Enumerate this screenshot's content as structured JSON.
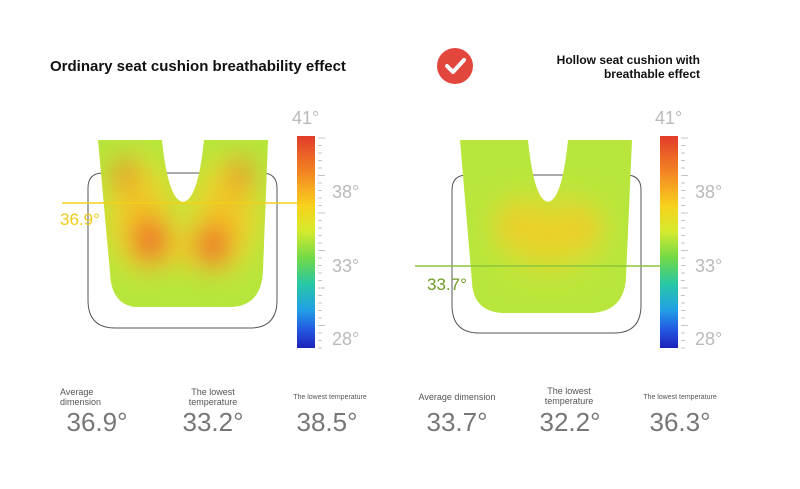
{
  "left": {
    "title": "Ordinary seat cushion breathability effect",
    "marker": "36.9°",
    "scale": [
      "41°",
      "38°",
      "33°",
      "28°"
    ],
    "stats": [
      {
        "label": "Average dimension",
        "value": "36.9°"
      },
      {
        "label": "The lowest temperature",
        "value": "33.2°"
      },
      {
        "label": "The lowest temperature",
        "value": "38.5°"
      }
    ]
  },
  "right": {
    "title_line1": "Hollow seat cushion with",
    "title_line2": "breathable effect",
    "check_icon": "check-circle-icon",
    "marker": "33.7°",
    "scale": [
      "41°",
      "38°",
      "33°",
      "28°"
    ],
    "stats": [
      {
        "label": "Average dimension",
        "value": "33.7°"
      },
      {
        "label": "The lowest temperature",
        "value": "32.2°"
      },
      {
        "label": "The lowest temperature",
        "value": "36.3°"
      }
    ]
  },
  "colors": {
    "hot": "#e2402b",
    "warm": "#f7c21a",
    "cool": "#b7e63a",
    "check": "#e2463c",
    "marker_left": "#f0cc1a",
    "marker_right": "#6f9a2a"
  }
}
